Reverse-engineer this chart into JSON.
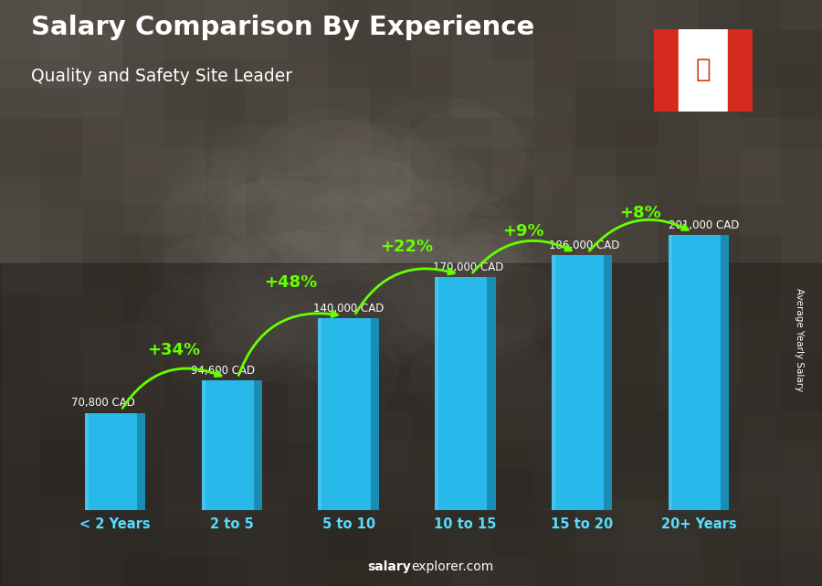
{
  "title": "Salary Comparison By Experience",
  "subtitle": "Quality and Safety Site Leader",
  "categories": [
    "< 2 Years",
    "2 to 5",
    "5 to 10",
    "10 to 15",
    "15 to 20",
    "20+ Years"
  ],
  "values": [
    70800,
    94600,
    140000,
    170000,
    186000,
    201000
  ],
  "salary_labels": [
    "70,800 CAD",
    "94,600 CAD",
    "140,000 CAD",
    "170,000 CAD",
    "186,000 CAD",
    "201,000 CAD"
  ],
  "pct_changes": [
    "+34%",
    "+48%",
    "+22%",
    "+9%",
    "+8%"
  ],
  "bar_color": "#29b8ea",
  "bar_shadow_color": "#1a8db5",
  "bar_highlight_color": "#5dd0f5",
  "pct_color": "#66ff00",
  "salary_label_color": "#ffffff",
  "xlabel_color": "#55ddff",
  "title_color": "#ffffff",
  "bg_color": "#3a3530",
  "bg_colors_gradient": [
    "#5a5248",
    "#3a3530",
    "#2a2520",
    "#1a1510"
  ],
  "ylabel": "Average Yearly Salary",
  "footer_bold": "salary",
  "footer_rest": "explorer.com",
  "ylim_max": 240000,
  "arc_rad": -0.4,
  "flag_red": "#d52b1e",
  "flag_white": "#ffffff"
}
